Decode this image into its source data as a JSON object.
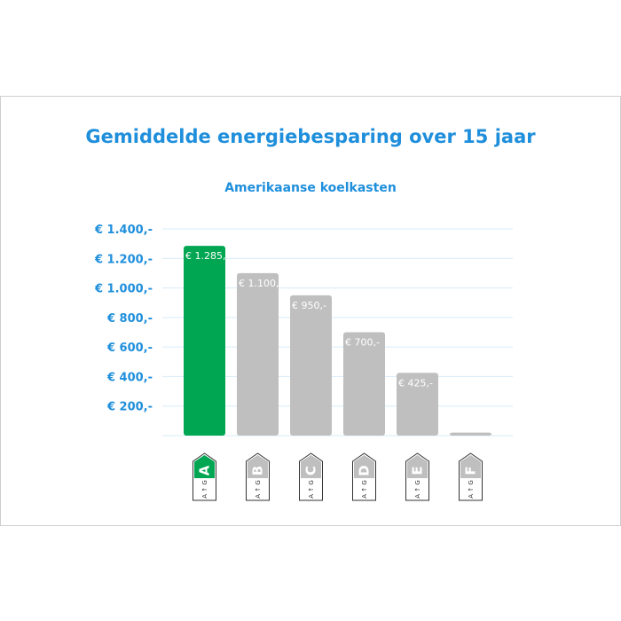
{
  "title": "Gemiddelde energiebesparing over 15 jaar",
  "subtitle": "Amerikaanse koelkasten",
  "colors": {
    "accent_blue": "#1f8fdc",
    "bar_green": "#00a651",
    "bar_gray": "#bfbfbf",
    "grid": "#d6ecf7"
  },
  "chart_data": {
    "type": "bar",
    "title": "Gemiddelde energiebesparing over 15 jaar",
    "subtitle": "Amerikaanse koelkasten",
    "categories": [
      "A",
      "B",
      "C",
      "D",
      "E",
      "F"
    ],
    "values": [
      1285,
      1100,
      950,
      700,
      425,
      20
    ],
    "data_labels": [
      "€ 1.285,-",
      "€ 1.100,-",
      "€ 950,-",
      "€ 700,-",
      "€ 425,-",
      ""
    ],
    "highlight_category": "A",
    "ylim": [
      0,
      1400
    ],
    "yticks": [
      200,
      400,
      600,
      800,
      1000,
      1200,
      1400
    ],
    "ytick_labels": [
      "€ 200,-",
      "€ 400,-",
      "€ 600,-",
      "€ 800,-",
      "€ 1.000,-",
      "€ 1.200,-",
      "€ 1.400,-"
    ],
    "grid": true,
    "legend": "none",
    "energy_label_subtext": [
      "A",
      "G"
    ]
  }
}
